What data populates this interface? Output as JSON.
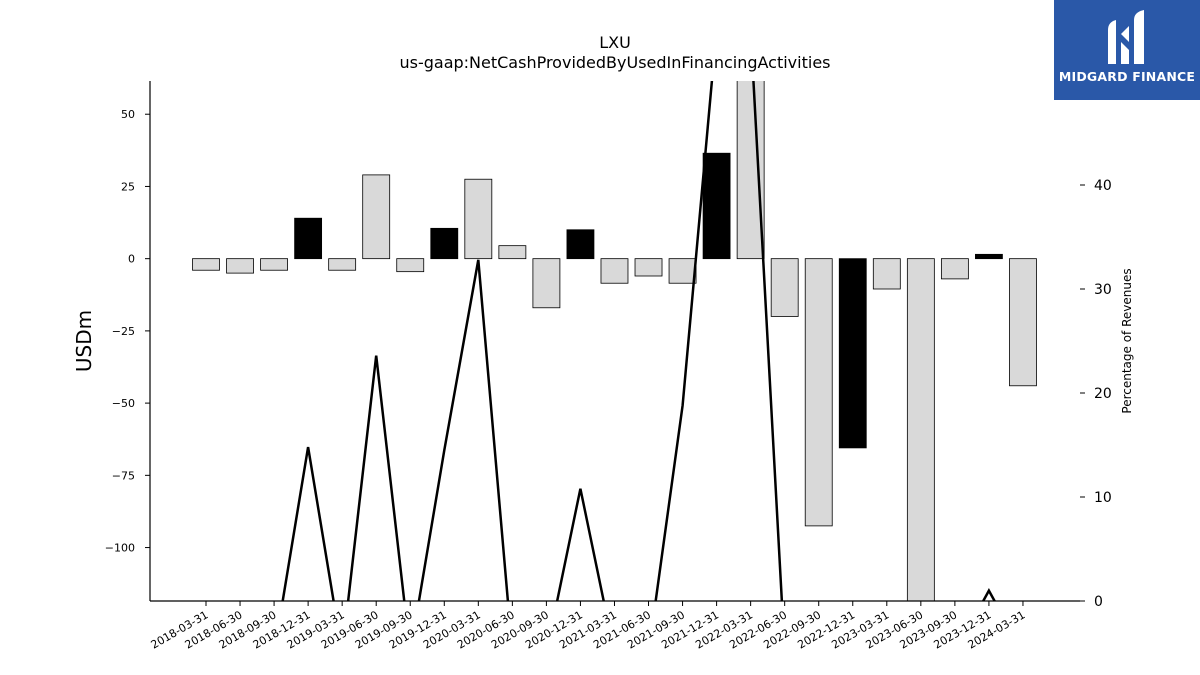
{
  "chart_data": {
    "type": "bar",
    "title": "LXU",
    "subtitle": "us-gaap:NetCashProvidedByUsedInFinancingActivities",
    "ylabel": "USDm",
    "y2label": "Percentage of Revenues",
    "ylim": [
      -118.5,
      61.5
    ],
    "y2lim": [
      0,
      50
    ],
    "yticks": [
      50,
      25,
      0,
      -25,
      -50,
      -75,
      -100
    ],
    "ytick_labels": [
      "50",
      "25",
      "0",
      "−25",
      "−50",
      "−75",
      "−100"
    ],
    "y2ticks": [
      0,
      10,
      20,
      30,
      40
    ],
    "categories": [
      "2018-03-31",
      "2018-06-30",
      "2018-09-30",
      "2018-12-31",
      "2019-03-31",
      "2019-06-30",
      "2019-09-30",
      "2019-12-31",
      "2020-03-31",
      "2020-06-30",
      "2020-09-30",
      "2020-12-31",
      "2021-03-31",
      "2021-06-30",
      "2021-09-30",
      "2021-12-31",
      "2022-03-31",
      "2022-06-30",
      "2022-09-30",
      "2022-12-31",
      "2023-03-31",
      "2023-06-30",
      "2023-09-30",
      "2023-12-31",
      "2024-03-31"
    ],
    "series": [
      {
        "values": [
          -4,
          -5,
          -4,
          14,
          -4,
          29,
          -4.5,
          10.5,
          27.5,
          4.5,
          -17,
          10,
          -8.5,
          -6,
          -8.5,
          36.5,
          65,
          -20,
          -92.5,
          -65.5,
          -10.5,
          -125,
          -7,
          1.5,
          -44
        ],
        "highlight": [
          false,
          false,
          false,
          true,
          false,
          false,
          false,
          true,
          false,
          false,
          false,
          true,
          false,
          false,
          false,
          true,
          false,
          false,
          false,
          true,
          false,
          false,
          false,
          true,
          false
        ]
      },
      {
        "type": "line",
        "axis": "right",
        "values": [
          -5,
          -5,
          -5,
          14.8,
          -5,
          23.6,
          -5,
          14.5,
          32.8,
          -5,
          -5,
          10.8,
          -5,
          -5,
          18.8,
          55,
          55,
          -5,
          -5,
          -5,
          -5,
          -5,
          -5,
          1,
          -5
        ]
      }
    ],
    "colors": {
      "bar": "#d9d9d9",
      "bar_highlight": "#000000",
      "line": "#000000"
    }
  },
  "logo": {
    "text": "MIDGARD FINANCE",
    "color": "#2a58a8"
  }
}
